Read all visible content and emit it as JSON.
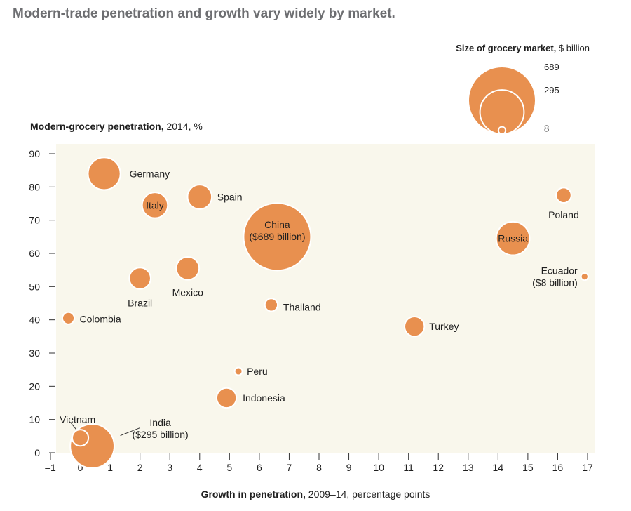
{
  "title": "Modern-trade penetration and growth vary widely by market.",
  "colors": {
    "bubble": "#E8904F",
    "plot_bg": "#F9F7EC",
    "stroke": "#ffffff",
    "title": "#6d6e71"
  },
  "chart_data": {
    "type": "scatter",
    "title": "",
    "xlabel": {
      "bold": "Growth in penetration,",
      "rest": " 2009–14, percentage points"
    },
    "ylabel": {
      "bold": "Modern-grocery penetration,",
      "rest": " 2014, %"
    },
    "xlim": [
      -1,
      17
    ],
    "ylim": [
      0,
      90
    ],
    "xticks": [
      -1,
      0,
      1,
      2,
      3,
      4,
      5,
      6,
      7,
      8,
      9,
      10,
      11,
      12,
      13,
      14,
      15,
      16,
      17
    ],
    "yticks": [
      0,
      10,
      20,
      30,
      40,
      50,
      60,
      70,
      80,
      90
    ],
    "tick_labels_x": [
      "–1",
      "0",
      "1",
      "2",
      "3",
      "4",
      "5",
      "6",
      "7",
      "8",
      "9",
      "10",
      "11",
      "12",
      "13",
      "14",
      "15",
      "16",
      "17"
    ],
    "tick_labels_y": [
      "0",
      "10",
      "20",
      "30",
      "40",
      "50",
      "60",
      "70",
      "80",
      "90"
    ],
    "size_legend": {
      "title": {
        "bold": "Size of grocery market,",
        "rest": " $ billion"
      },
      "values": [
        689,
        295,
        8
      ],
      "labels": [
        "689",
        "295",
        "8"
      ]
    },
    "points": [
      {
        "country": "Germany",
        "label": [
          "Germany"
        ],
        "x": 0.8,
        "y": 84,
        "size": 160
      },
      {
        "country": "Italy",
        "label": [
          "Italy"
        ],
        "x": 2.5,
        "y": 74.5,
        "size": 100
      },
      {
        "country": "Spain",
        "label": [
          "Spain"
        ],
        "x": 4.0,
        "y": 77,
        "size": 90
      },
      {
        "country": "China",
        "label": [
          "China",
          "($689 billion)"
        ],
        "x": 6.6,
        "y": 65,
        "size": 689
      },
      {
        "country": "Russia",
        "label": [
          "Russia"
        ],
        "x": 14.5,
        "y": 64.5,
        "size": 170
      },
      {
        "country": "Poland",
        "label": [
          "Poland"
        ],
        "x": 16.2,
        "y": 77.5,
        "size": 35
      },
      {
        "country": "Mexico",
        "label": [
          "Mexico"
        ],
        "x": 3.6,
        "y": 55.5,
        "size": 80
      },
      {
        "country": "Brazil",
        "label": [
          "Brazil"
        ],
        "x": 2.0,
        "y": 52.5,
        "size": 70
      },
      {
        "country": "Ecuador",
        "label": [
          "Ecuador",
          "($8 billion)"
        ],
        "x": 16.9,
        "y": 53,
        "size": 8
      },
      {
        "country": "Thailand",
        "label": [
          "Thailand"
        ],
        "x": 6.4,
        "y": 44.5,
        "size": 25
      },
      {
        "country": "Colombia",
        "label": [
          "Colombia"
        ],
        "x": -0.4,
        "y": 40.5,
        "size": 22
      },
      {
        "country": "Turkey",
        "label": [
          "Turkey"
        ],
        "x": 11.2,
        "y": 38,
        "size": 60
      },
      {
        "country": "Peru",
        "label": [
          "Peru"
        ],
        "x": 5.3,
        "y": 24.5,
        "size": 9
      },
      {
        "country": "Indonesia",
        "label": [
          "Indonesia"
        ],
        "x": 4.9,
        "y": 16.5,
        "size": 60
      },
      {
        "country": "India",
        "label": [
          "India",
          "($295 billion)"
        ],
        "x": 0.4,
        "y": 2,
        "size": 295
      },
      {
        "country": "Vietnam",
        "label": [
          "Vietnam"
        ],
        "x": 0.0,
        "y": 4.5,
        "size": 40
      }
    ]
  }
}
